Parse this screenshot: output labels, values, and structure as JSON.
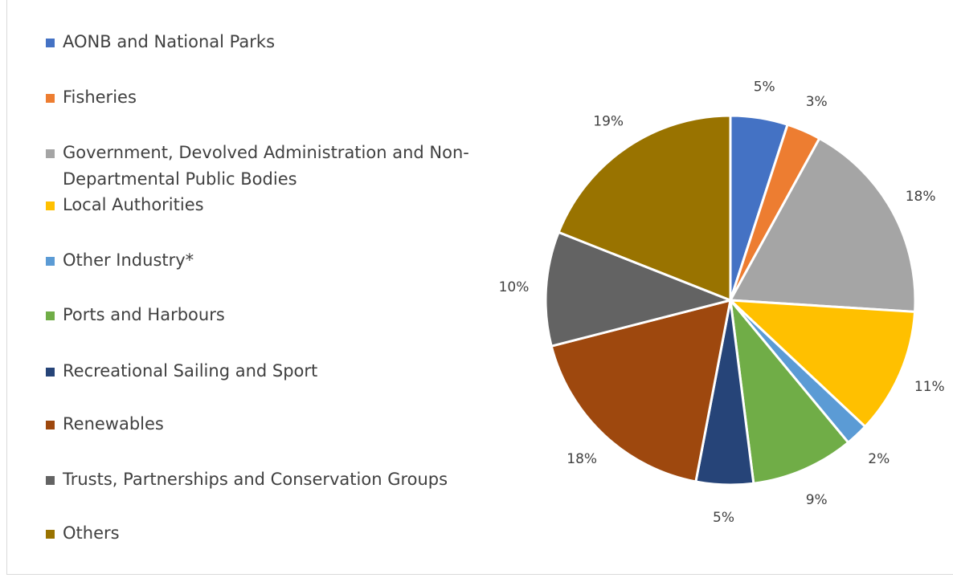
{
  "colors": {
    "aonb": "#4472c4",
    "fisheries": "#ed7d31",
    "government": "#a5a5a5",
    "local": "#ffc000",
    "other_industry": "#5b9bd5",
    "ports": "#70ad47",
    "sailing": "#264478",
    "renewables": "#9e480e",
    "trusts": "#636363",
    "others": "#997300"
  },
  "chart_data": {
    "type": "pie",
    "legend_position": "left",
    "slices": [
      {
        "label": "AONB and National Parks",
        "value": 5,
        "display": "5%",
        "color": "#4472c4"
      },
      {
        "label": "Fisheries",
        "value": 3,
        "display": "3%",
        "color": "#ed7d31"
      },
      {
        "label": "Government, Devolved Administration and Non-Departmental Public Bodies",
        "value": 18,
        "display": "18%",
        "color": "#a5a5a5"
      },
      {
        "label": "Local Authorities",
        "value": 11,
        "display": "11%",
        "color": "#ffc000"
      },
      {
        "label": "Other Industry*",
        "value": 2,
        "display": "2%",
        "color": "#5b9bd5"
      },
      {
        "label": "Ports and Harbours",
        "value": 9,
        "display": "9%",
        "color": "#70ad47"
      },
      {
        "label": "Recreational Sailing and Sport",
        "value": 5,
        "display": "5%",
        "color": "#264478"
      },
      {
        "label": "Renewables",
        "value": 18,
        "display": "18%",
        "color": "#9e480e"
      },
      {
        "label": "Trusts, Partnerships and Conservation Groups",
        "value": 10,
        "display": "10%",
        "color": "#636363"
      },
      {
        "label": "Others",
        "value": 19,
        "display": "19%",
        "color": "#997300"
      }
    ]
  }
}
